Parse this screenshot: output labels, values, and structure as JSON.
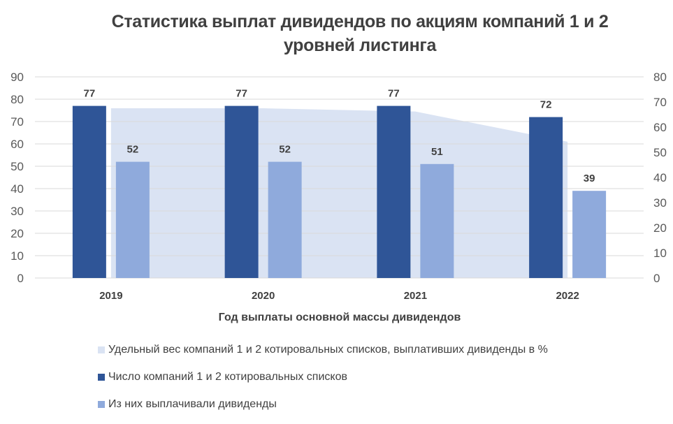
{
  "chart_data": {
    "type": "bar",
    "title": "Статистика  выплат дивидендов по акциям компаний 1 и 2 уровней листинга",
    "title_lines": [
      "Статистика  выплат дивидендов по акциям компаний 1 и 2",
      "уровней листинга"
    ],
    "xlabel": "Год выплаты основной массы дивидендов",
    "ylabel": "",
    "categories": [
      "2019",
      "2020",
      "2021",
      "2022"
    ],
    "y_left": {
      "range": [
        0,
        90
      ],
      "ticks": [
        0,
        10,
        20,
        30,
        40,
        50,
        60,
        70,
        80,
        90
      ]
    },
    "y_right": {
      "range": [
        0,
        80
      ],
      "ticks": [
        0,
        10,
        20,
        30,
        40,
        50,
        60,
        70,
        80
      ]
    },
    "grid": true,
    "legend_position": "bottom",
    "series": [
      {
        "name": "Удельный вес компаний 1 и 2 котировальных списков, выплативших дивиденды в %",
        "type": "area",
        "axis": "right",
        "color": "#DAE3F3",
        "values": [
          67.5,
          67.5,
          66.2,
          54.2
        ],
        "show_labels": false
      },
      {
        "name": "Число компаний 1 и 2 котировальных списков",
        "type": "bar",
        "axis": "left",
        "color": "#2F5597",
        "values": [
          77,
          77,
          77,
          72
        ],
        "show_labels": true
      },
      {
        "name": "Из них выплачивали дивиденды",
        "type": "bar",
        "axis": "left",
        "color": "#8FAADC",
        "values": [
          52,
          52,
          51,
          39
        ],
        "show_labels": true
      }
    ]
  }
}
